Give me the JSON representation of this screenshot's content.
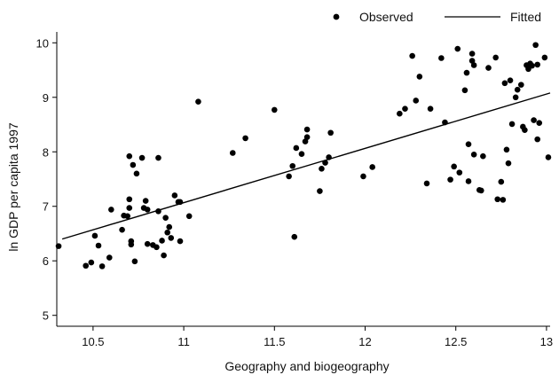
{
  "chart_data": {
    "type": "scatter",
    "title": "",
    "xlabel": "Geography and biogeography",
    "ylabel": "ln GDP per capita 1997",
    "xlim": [
      10.3,
      13.02
    ],
    "ylim": [
      4.8,
      10.2
    ],
    "x_ticks": [
      10.5,
      11,
      11.5,
      12,
      12.5,
      13
    ],
    "x_tick_labels": [
      "10.5",
      "11",
      "11.5",
      "12",
      "12.5",
      "13"
    ],
    "y_ticks": [
      5,
      6,
      7,
      8,
      9,
      10
    ],
    "y_tick_labels": [
      "5",
      "6",
      "7",
      "8",
      "9",
      "10"
    ],
    "grid": false,
    "legend_position": "top-right",
    "legend": [
      {
        "label": "Observed",
        "marker": "dot"
      },
      {
        "label": "Fitted",
        "marker": "line"
      }
    ],
    "series": [
      {
        "name": "Observed",
        "kind": "scatter",
        "color": "#000000",
        "points": [
          [
            10.31,
            6.27
          ],
          [
            10.46,
            5.91
          ],
          [
            10.49,
            5.97
          ],
          [
            10.51,
            6.46
          ],
          [
            10.53,
            6.28
          ],
          [
            10.55,
            5.9
          ],
          [
            10.59,
            6.06
          ],
          [
            10.6,
            6.94
          ],
          [
            10.66,
            6.57
          ],
          [
            10.67,
            6.83
          ],
          [
            10.69,
            6.82
          ],
          [
            10.7,
            7.13
          ],
          [
            10.7,
            7.92
          ],
          [
            10.7,
            6.97
          ],
          [
            10.71,
            6.36
          ],
          [
            10.71,
            6.3
          ],
          [
            10.72,
            7.76
          ],
          [
            10.73,
            5.99
          ],
          [
            10.74,
            7.6
          ],
          [
            10.77,
            7.89
          ],
          [
            10.78,
            6.97
          ],
          [
            10.79,
            7.1
          ],
          [
            10.8,
            6.31
          ],
          [
            10.8,
            6.94
          ],
          [
            10.83,
            6.29
          ],
          [
            10.85,
            6.25
          ],
          [
            10.86,
            7.89
          ],
          [
            10.86,
            6.91
          ],
          [
            10.88,
            6.37
          ],
          [
            10.89,
            6.1
          ],
          [
            10.9,
            6.79
          ],
          [
            10.91,
            6.52
          ],
          [
            10.92,
            6.62
          ],
          [
            10.93,
            6.42
          ],
          [
            10.95,
            7.2
          ],
          [
            10.97,
            7.08
          ],
          [
            10.98,
            6.36
          ],
          [
            10.98,
            7.08
          ],
          [
            11.03,
            6.82
          ],
          [
            11.08,
            8.92
          ],
          [
            11.27,
            7.98
          ],
          [
            11.34,
            8.25
          ],
          [
            11.5,
            8.77
          ],
          [
            11.58,
            7.55
          ],
          [
            11.6,
            7.74
          ],
          [
            11.61,
            6.44
          ],
          [
            11.62,
            8.07
          ],
          [
            11.65,
            7.96
          ],
          [
            11.67,
            8.19
          ],
          [
            11.68,
            8.27
          ],
          [
            11.68,
            8.41
          ],
          [
            11.75,
            7.28
          ],
          [
            11.76,
            7.69
          ],
          [
            11.78,
            7.8
          ],
          [
            11.8,
            7.9
          ],
          [
            11.81,
            8.35
          ],
          [
            11.99,
            7.55
          ],
          [
            12.04,
            7.72
          ],
          [
            12.19,
            8.7
          ],
          [
            12.22,
            8.79
          ],
          [
            12.26,
            9.76
          ],
          [
            12.28,
            8.94
          ],
          [
            12.3,
            9.38
          ],
          [
            12.34,
            7.42
          ],
          [
            12.36,
            8.79
          ],
          [
            12.42,
            9.72
          ],
          [
            12.44,
            8.54
          ],
          [
            12.47,
            7.49
          ],
          [
            12.49,
            7.73
          ],
          [
            12.51,
            9.89
          ],
          [
            12.52,
            7.62
          ],
          [
            12.55,
            9.13
          ],
          [
            12.56,
            9.45
          ],
          [
            12.57,
            8.14
          ],
          [
            12.57,
            7.46
          ],
          [
            12.59,
            9.8
          ],
          [
            12.59,
            9.67
          ],
          [
            12.6,
            9.59
          ],
          [
            12.6,
            7.95
          ],
          [
            12.63,
            7.3
          ],
          [
            12.64,
            7.29
          ],
          [
            12.65,
            7.92
          ],
          [
            12.68,
            9.54
          ],
          [
            12.72,
            9.73
          ],
          [
            12.73,
            7.13
          ],
          [
            12.75,
            7.45
          ],
          [
            12.76,
            7.12
          ],
          [
            12.77,
            9.26
          ],
          [
            12.78,
            8.04
          ],
          [
            12.79,
            7.79
          ],
          [
            12.8,
            9.31
          ],
          [
            12.81,
            8.51
          ],
          [
            12.83,
            9.0
          ],
          [
            12.84,
            9.14
          ],
          [
            12.86,
            9.23
          ],
          [
            12.87,
            8.46
          ],
          [
            12.88,
            8.4
          ],
          [
            12.89,
            9.59
          ],
          [
            12.9,
            9.52
          ],
          [
            12.91,
            9.62
          ],
          [
            12.92,
            9.58
          ],
          [
            12.93,
            8.58
          ],
          [
            12.94,
            9.96
          ],
          [
            12.95,
            9.6
          ],
          [
            12.95,
            8.23
          ],
          [
            12.96,
            8.53
          ],
          [
            12.99,
            9.73
          ],
          [
            13.01,
            7.9
          ]
        ]
      },
      {
        "name": "Fitted",
        "kind": "line",
        "color": "#000000",
        "points": [
          [
            10.33,
            6.4
          ],
          [
            13.02,
            9.08
          ]
        ]
      }
    ]
  }
}
